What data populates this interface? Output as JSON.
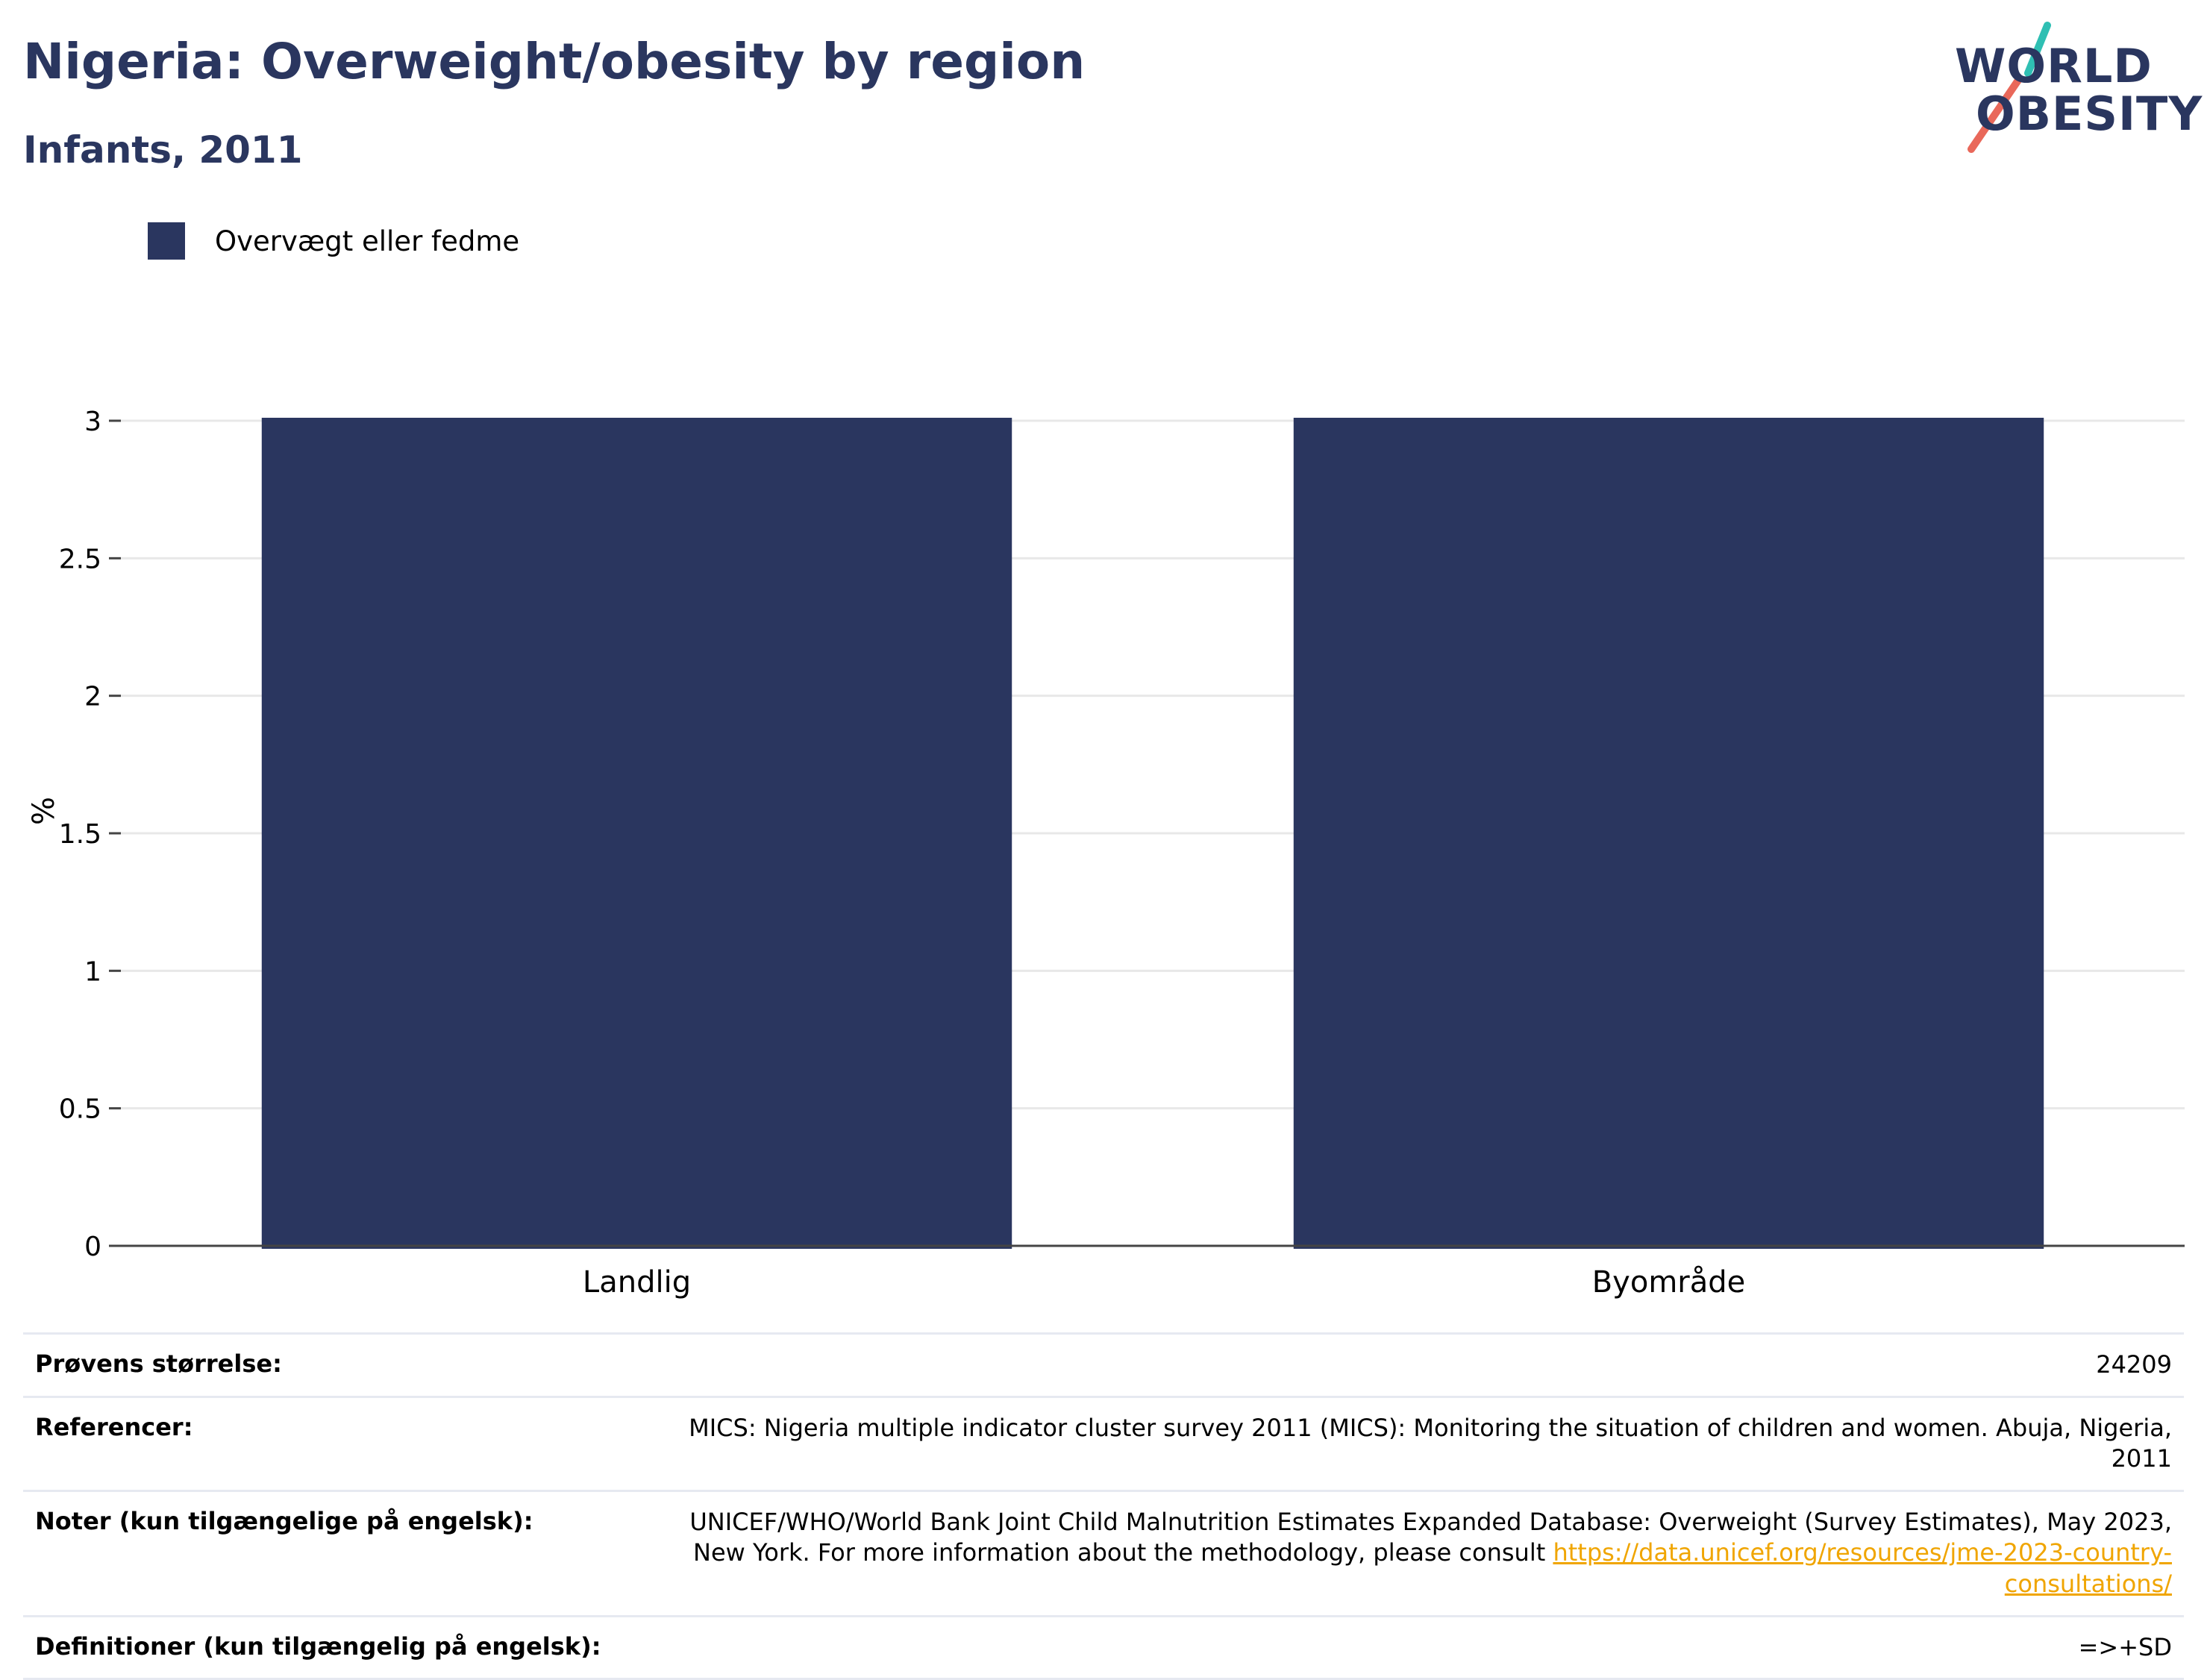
{
  "header": {
    "title": "Nigeria: Overweight/obesity by region",
    "subtitle": "Infants, 2011"
  },
  "logo": {
    "line1": "WORLD",
    "line2": "OBESITY",
    "text_color": "#2a365f",
    "slash_colors": [
      "#2fbfb3",
      "#e9685a"
    ]
  },
  "colors": {
    "bar": "#2a365f",
    "grid": "#e8e8e8",
    "axis": "#444444",
    "link": "#f0a500"
  },
  "chart_data": {
    "type": "bar",
    "title": "",
    "categories": [
      "Landlig",
      "Byområde"
    ],
    "series": [
      {
        "name": "Overvægt eller fedme",
        "values": [
          3.0,
          3.0
        ]
      }
    ],
    "xlabel": "",
    "ylabel": "%",
    "ylim": [
      0,
      3
    ],
    "yticks": [
      "0",
      "0.5",
      "1",
      "1.5",
      "2",
      "2.5",
      "3"
    ],
    "grid": true,
    "legend_position": "top-left"
  },
  "info": {
    "sample_size_label": "Prøvens størrelse:",
    "sample_size_value": "24209",
    "references_label": "Referencer:",
    "references_value": "MICS: Nigeria multiple indicator cluster survey 2011 (MICS): Monitoring the situation of children and women. Abuja, Nigeria, 2011",
    "notes_label": "Noter (kun tilgængelige på engelsk):",
    "notes_text": "UNICEF/WHO/World Bank Joint Child Malnutrition Estimates Expanded Database: Overweight (Survey Estimates), May 2023, New York. For more information about the methodology, please consult ",
    "notes_link": "https://data.unicef.org/resources/jme-2023-country-consultations/",
    "definitions_label": "Definitioner (kun tilgængelig på engelsk):",
    "definitions_value": "=>+SD"
  }
}
